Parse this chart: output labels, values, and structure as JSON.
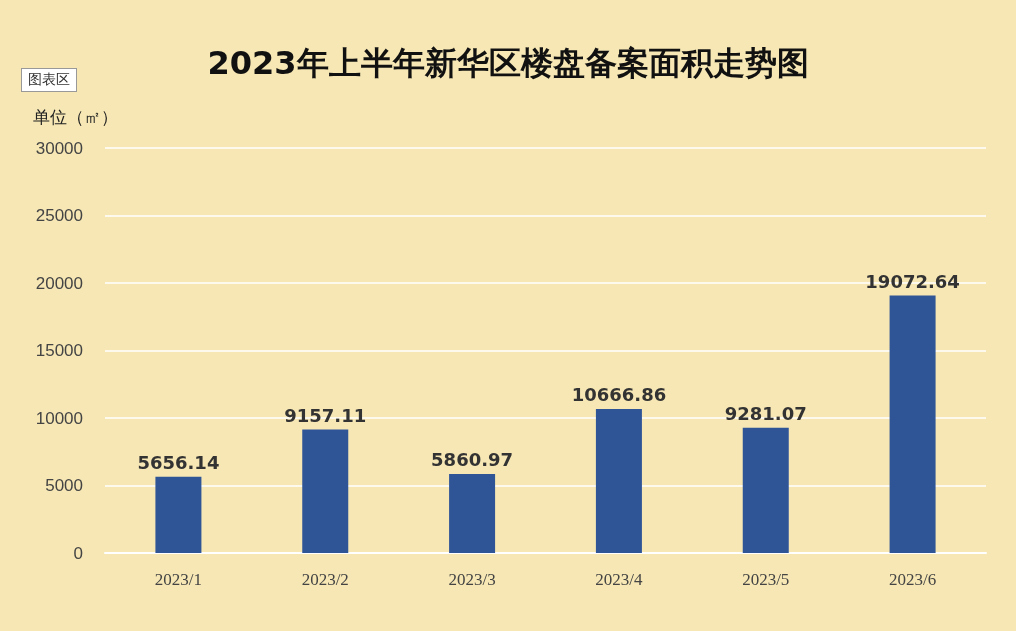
{
  "chart_data": {
    "type": "bar",
    "title": "2023年上半年新华区楼盘备案面积走势图",
    "ylabel": "单位（㎡）",
    "annotations": [
      "图表区"
    ],
    "categories": [
      "2023/1",
      "2023/2",
      "2023/3",
      "2023/4",
      "2023/5",
      "2023/6"
    ],
    "values": [
      5656.14,
      9157.11,
      5860.97,
      10666.86,
      9281.07,
      19072.64
    ],
    "color": "#2f5597",
    "ylim": [
      0,
      30000
    ],
    "yticks": [
      0,
      5000,
      10000,
      15000,
      20000,
      25000,
      30000
    ],
    "grid": "y",
    "data_labels": true
  }
}
